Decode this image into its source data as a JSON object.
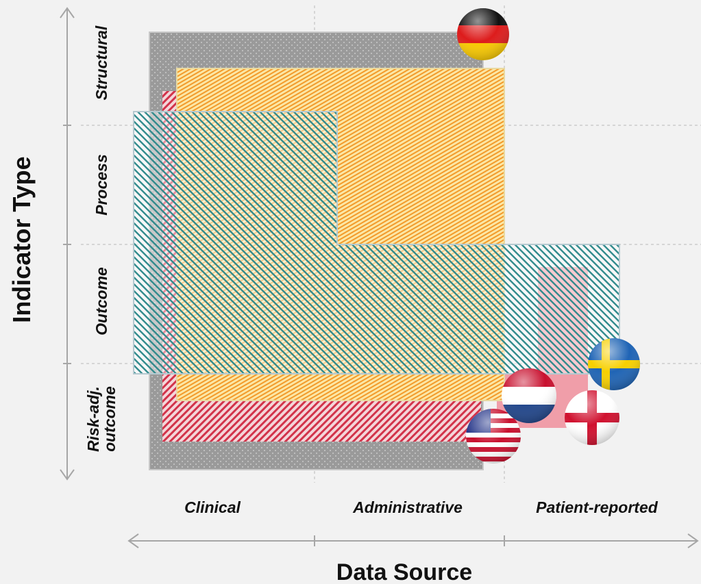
{
  "y_axis": {
    "title": "Indicator Type",
    "labels": [
      [
        "Structural"
      ],
      [
        "Process"
      ],
      [
        "Outcome"
      ],
      [
        "Risk-adj.",
        "outcome"
      ]
    ]
  },
  "x_axis": {
    "title": "Data Source",
    "labels": [
      "Clinical",
      "Administrative",
      "Patient-reported"
    ]
  }
}
